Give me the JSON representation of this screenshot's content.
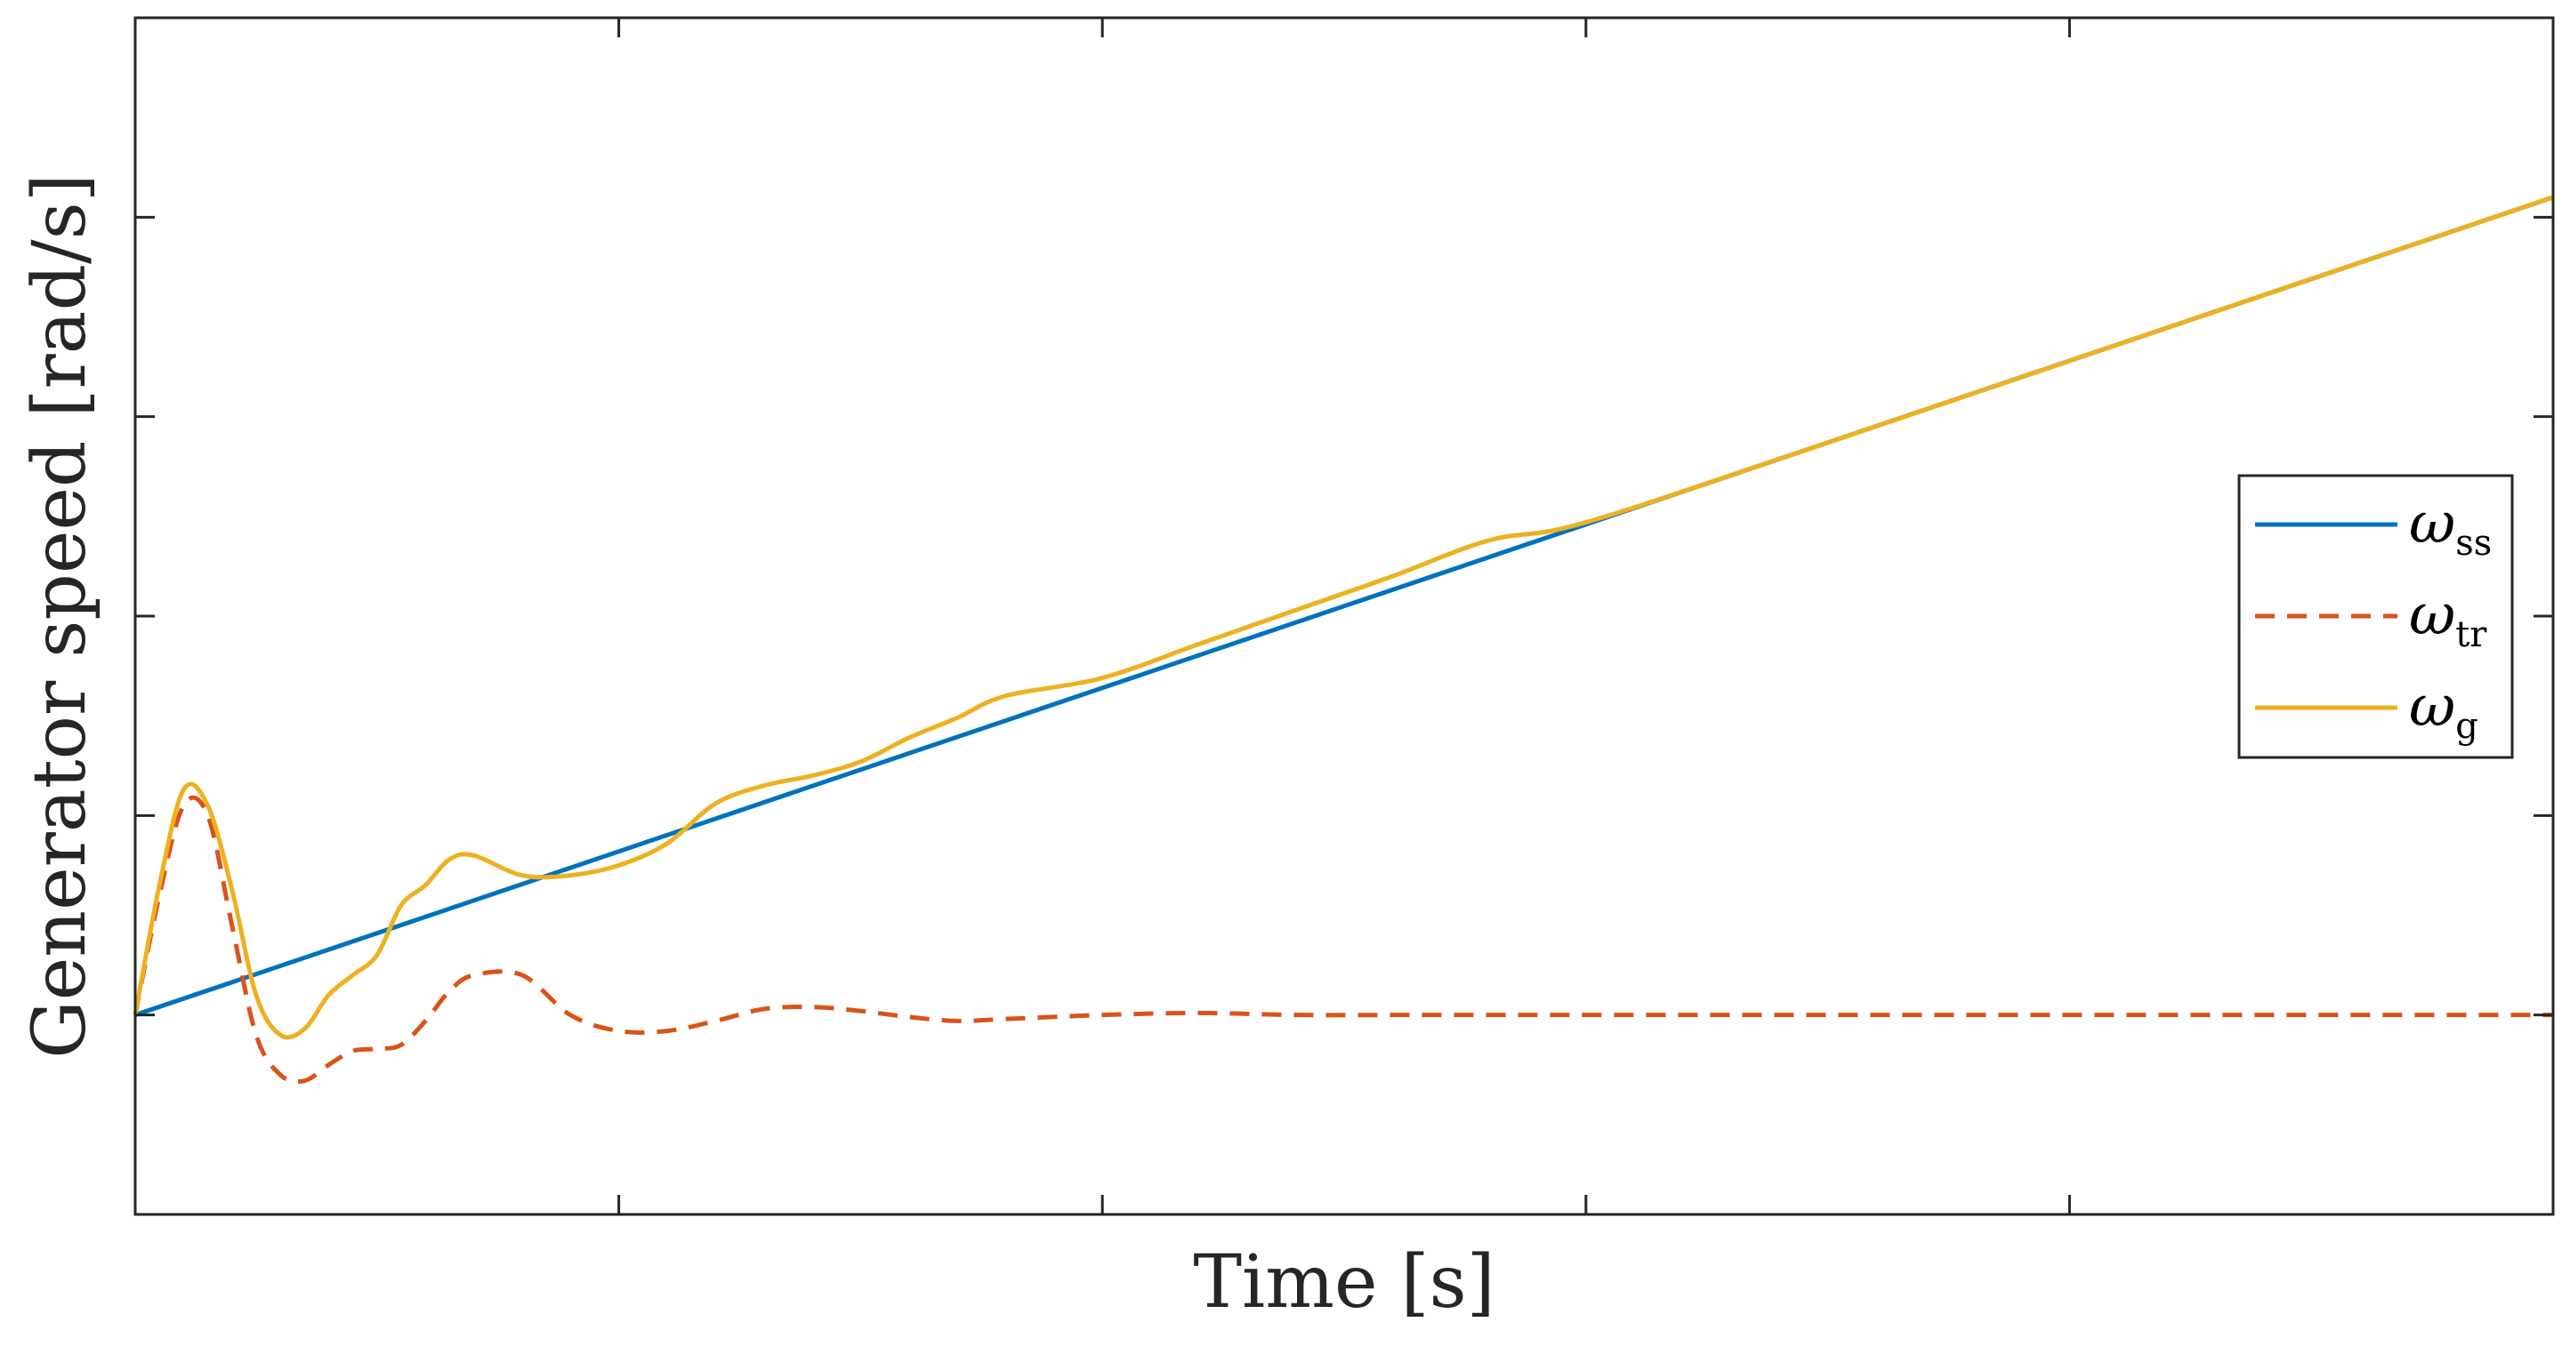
{
  "chart_data": {
    "type": "line",
    "xlabel": "Time [s]",
    "ylabel": "Generator speed [rad/s]",
    "xlim": [
      0,
      5
    ],
    "ylim": [
      -1,
      5
    ],
    "x_tick_labels_shown": false,
    "y_tick_labels_shown": false,
    "grid": false,
    "legend_position": "right",
    "series": [
      {
        "name": "ω_ss",
        "legend_symbol": "ω",
        "legend_subscript": "ss",
        "color": "#0072BD",
        "style": "solid",
        "x": [
          0,
          5
        ],
        "y": [
          0,
          4.1
        ]
      },
      {
        "name": "ω_tr",
        "legend_symbol": "ω",
        "legend_subscript": "tr",
        "color": "#D95319",
        "style": "dashed",
        "x": [
          0,
          0.05,
          0.1,
          0.15,
          0.2,
          0.25,
          0.3,
          0.35,
          0.4,
          0.45,
          0.5,
          0.55,
          0.6,
          0.65,
          0.7,
          0.8,
          0.9,
          1.0,
          1.1,
          1.2,
          1.3,
          1.4,
          1.5,
          1.6,
          1.7,
          1.8,
          2.0,
          2.2,
          2.4,
          2.6,
          2.8,
          3.0,
          3.5,
          4.0,
          4.5,
          5.0
        ],
        "y": [
          0,
          0.6,
          1.05,
          1.0,
          0.45,
          -0.1,
          -0.3,
          -0.33,
          -0.25,
          -0.18,
          -0.17,
          -0.15,
          -0.03,
          0.12,
          0.2,
          0.2,
          0.0,
          -0.08,
          -0.08,
          -0.03,
          0.03,
          0.04,
          0.02,
          -0.01,
          -0.03,
          -0.02,
          0.0,
          0.01,
          0.0,
          0.0,
          0.0,
          0.0,
          0.0,
          0.0,
          0.0,
          0.0
        ]
      },
      {
        "name": "ω_g",
        "legend_symbol": "ω",
        "legend_subscript": "g",
        "color": "#EDB120",
        "style": "solid",
        "x": [
          0,
          0.05,
          0.1,
          0.15,
          0.2,
          0.25,
          0.3,
          0.35,
          0.4,
          0.45,
          0.5,
          0.55,
          0.6,
          0.65,
          0.7,
          0.8,
          0.9,
          1.0,
          1.1,
          1.2,
          1.3,
          1.4,
          1.5,
          1.6,
          1.7,
          1.8,
          2.0,
          2.2,
          2.4,
          2.6,
          2.8,
          3.0,
          3.5,
          4.0,
          4.5,
          5.0
        ],
        "y": [
          0,
          0.65,
          1.13,
          1.05,
          0.63,
          0.1,
          -0.1,
          -0.07,
          0.1,
          0.2,
          0.3,
          0.55,
          0.65,
          0.78,
          0.8,
          0.7,
          0.7,
          0.75,
          0.86,
          1.06,
          1.15,
          1.2,
          1.27,
          1.39,
          1.49,
          1.6,
          1.69,
          1.86,
          2.03,
          2.2,
          2.38,
          2.47,
          2.87,
          3.28,
          3.69,
          4.1
        ]
      }
    ]
  }
}
